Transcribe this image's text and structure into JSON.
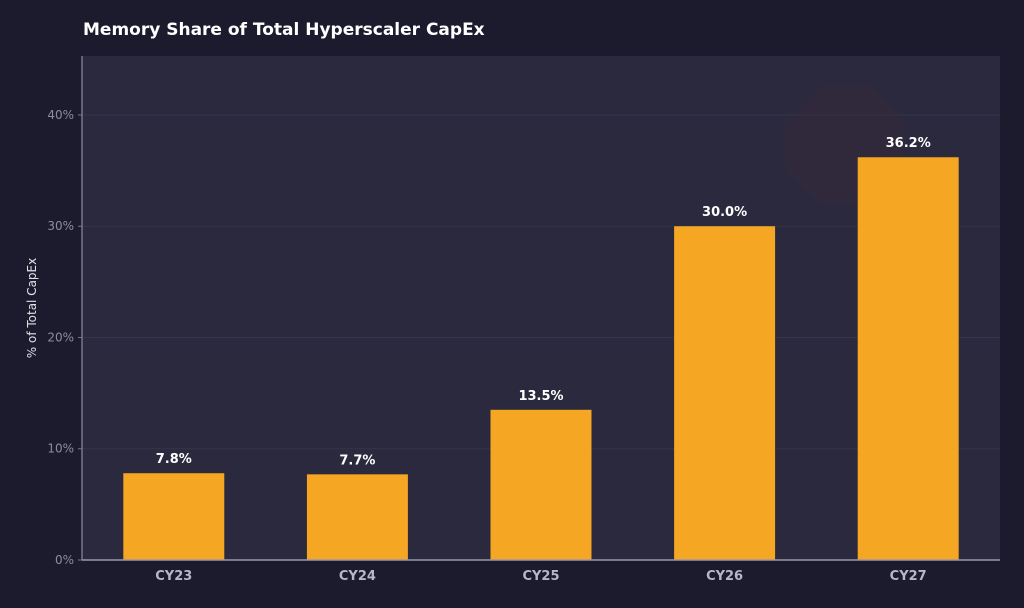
{
  "chart_data": {
    "type": "bar",
    "title": "Memory Share of Total Hyperscaler CapEx",
    "xlabel": "",
    "ylabel": "% of Total CapEx",
    "categories": [
      "CY23",
      "CY24",
      "CY25",
      "CY26",
      "CY27"
    ],
    "values": [
      7.8,
      7.7,
      13.5,
      30.0,
      36.2
    ],
    "data_labels": [
      "7.8%",
      "7.7%",
      "13.5%",
      "30.0%",
      "36.2%"
    ],
    "yticks": [
      0,
      10,
      20,
      30,
      40
    ],
    "ytick_labels": [
      "0%",
      "10%",
      "20%",
      "30%",
      "40%"
    ],
    "ylim": [
      0,
      45.3
    ],
    "grid": true,
    "legend": "none",
    "colors": {
      "bar": "#f5a623",
      "background": "#1c1b2e",
      "plot_background": "#2a293d",
      "text": "#ffffff",
      "tick_text": "#8d8c9c"
    }
  }
}
